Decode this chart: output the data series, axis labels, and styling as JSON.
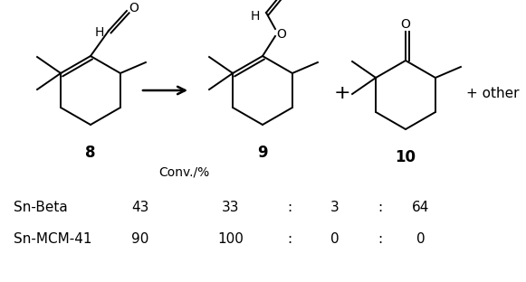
{
  "background_color": "#ffffff",
  "compound8_label": "8",
  "compound9_label": "9",
  "compound10_label": "10",
  "plus_sign": "+",
  "other_text": "+ other",
  "conv_label": "Conv./%",
  "row1_catalyst": "Sn-Beta",
  "row1_conv": "43",
  "row1_sel1": "33",
  "row1_colon1": ":",
  "row1_sel2": "3",
  "row1_colon2": ":",
  "row1_sel3": "64",
  "row2_catalyst": "Sn-MCM-41",
  "row2_conv": "90",
  "row2_sel1": "100",
  "row2_colon1": ":",
  "row2_sel2": "0",
  "row2_colon2": ":",
  "row2_sel3": "0",
  "font_size_struct": 9,
  "font_size_label": 11,
  "font_size_data": 11,
  "text_color": "#000000",
  "lw": 1.4
}
